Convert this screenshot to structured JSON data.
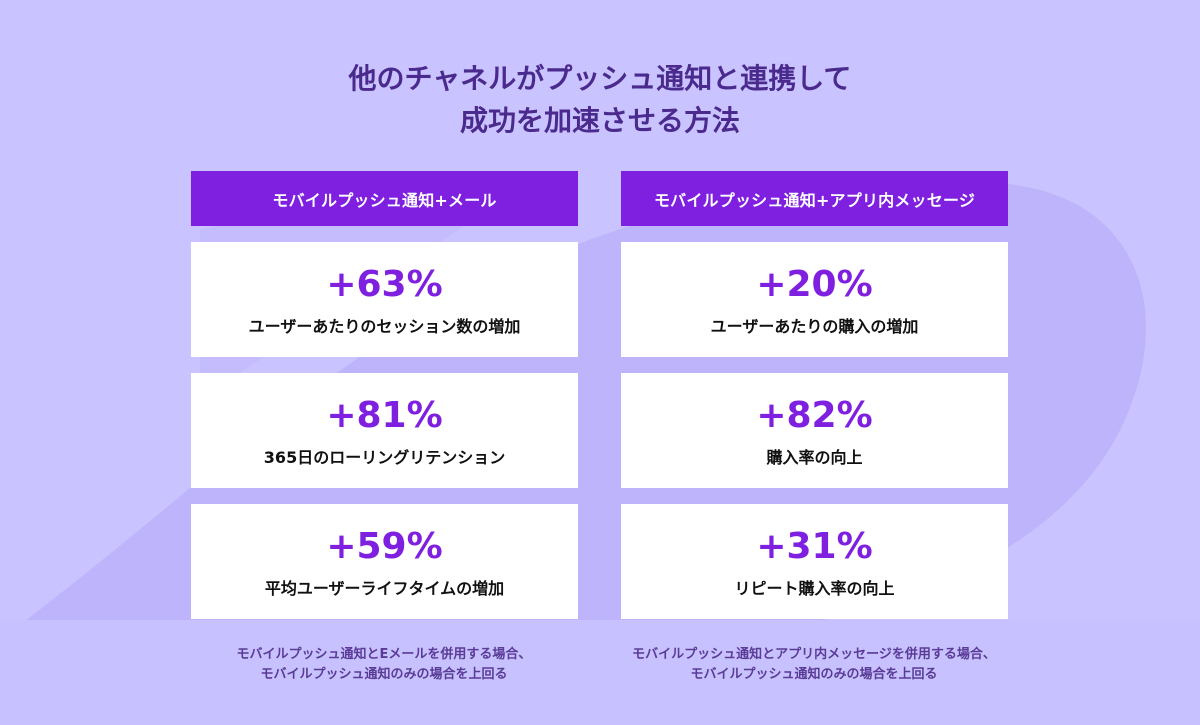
{
  "title": {
    "line1": "他のチャネルがプッシュ通知と連携して",
    "line2": "成功を加速させる方法"
  },
  "left_column": {
    "header": "モバイルプッシュ通知+メール",
    "cards": [
      {
        "value": "+63%",
        "label": "ユーザーあたりのセッション数の増加"
      },
      {
        "value": "+81%",
        "label": "365日のローリングリテンション"
      },
      {
        "value": "+59%",
        "label": "平均ユーザーライフタイムの増加"
      }
    ],
    "footnote": {
      "line1": "モバイルプッシュ通知とEメールを併用する場合、",
      "line2": "モバイルプッシュ通知のみの場合を上回る"
    }
  },
  "right_column": {
    "header": "モバイルプッシュ通知+アプリ内メッセージ",
    "cards": [
      {
        "value": "+20%",
        "label": "ユーザーあたりの購入の増加"
      },
      {
        "value": "+82%",
        "label": "購入率の向上"
      },
      {
        "value": "+31%",
        "label": "リピート購入率の向上"
      }
    ],
    "footnote": {
      "line1": "モバイルプッシュ通知とアプリ内メッセージを併用する場合、",
      "line2": "モバイルプッシュ通知のみの場合を上回る"
    }
  },
  "colors": {
    "background": "#c9c3ff",
    "accent": "#7f1fe0",
    "title": "#4b2a8d",
    "footnote": "#5a3c96",
    "card": "#ffffff",
    "decor": "#bbb2fb"
  }
}
